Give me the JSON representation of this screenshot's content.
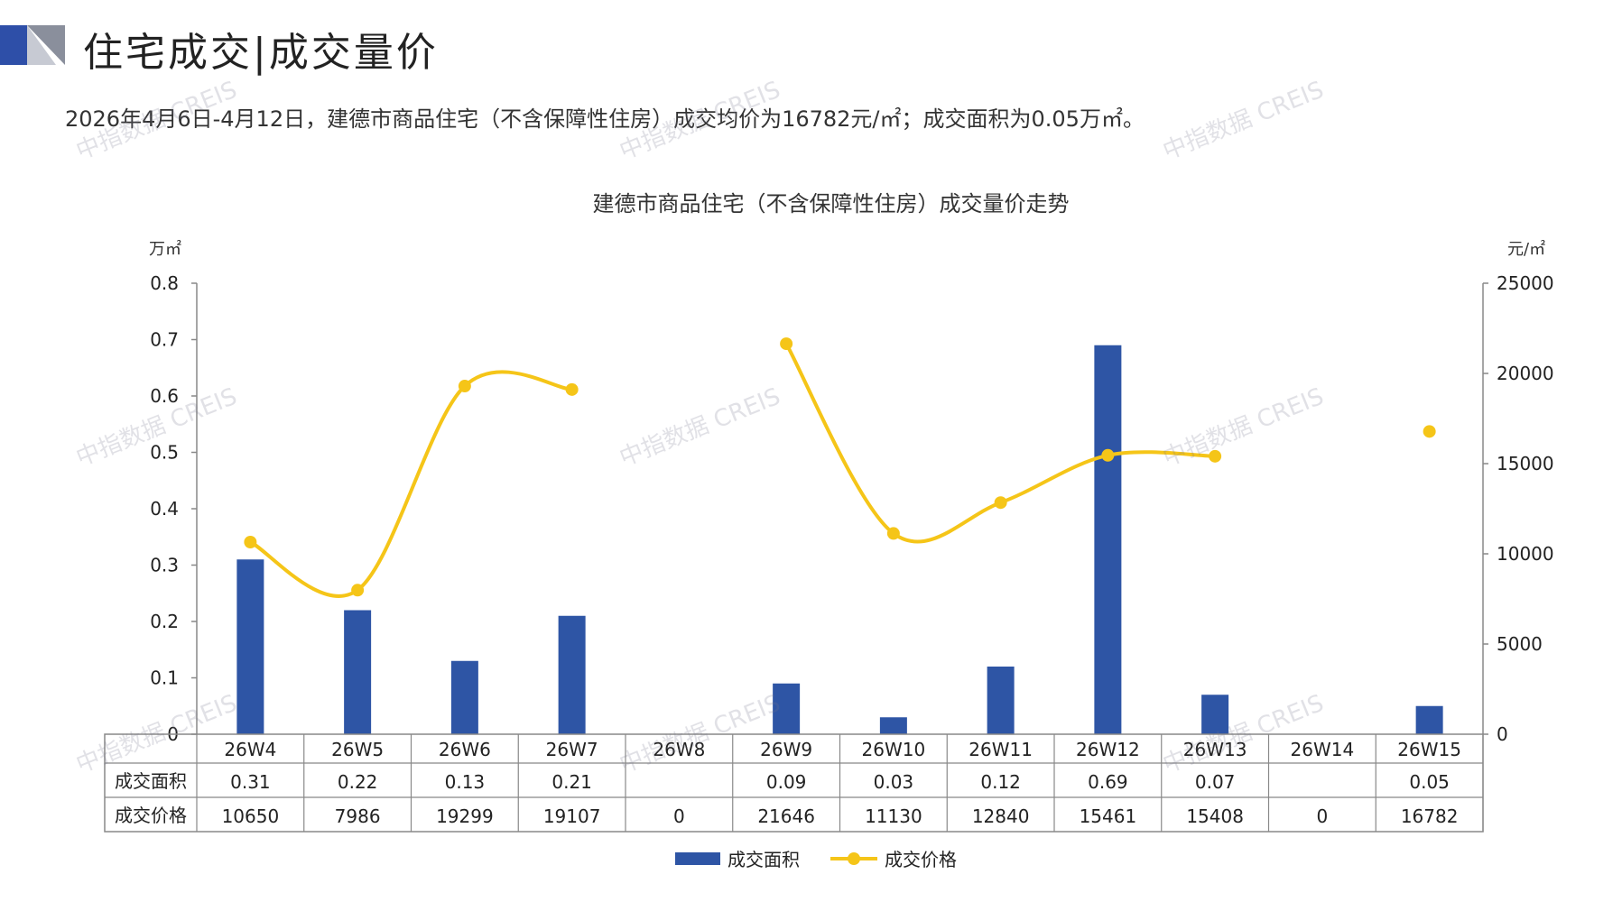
{
  "header": {
    "title": "住宅成交|成交量价",
    "summary": "2026年4月6日-4月12日，建德市商品住宅（不含保障性住房）成交均价为16782元/㎡；成交面积为0.05万㎡。"
  },
  "watermark": "中指数据 CREIS",
  "colors": {
    "bar": "#2E55A5",
    "line": "#F5C518",
    "accent_logo": "#2E4FA8"
  },
  "chart_data": {
    "type": "bar",
    "title": "建德市商品住宅（不含保障性住房）成交量价走势",
    "categories": [
      "26W4",
      "26W5",
      "26W6",
      "26W7",
      "26W8",
      "26W9",
      "26W10",
      "26W11",
      "26W12",
      "26W13",
      "26W14",
      "26W15"
    ],
    "y_left": {
      "unit": "万㎡",
      "ylim": [
        0,
        0.8
      ],
      "ticks": [
        "0",
        "0.1",
        "0.2",
        "0.3",
        "0.4",
        "0.5",
        "0.6",
        "0.7",
        "0.8"
      ]
    },
    "y_right": {
      "unit": "元/㎡",
      "ylim": [
        0,
        25000
      ],
      "ticks": [
        "0",
        "5000",
        "10000",
        "15000",
        "20000",
        "25000"
      ]
    },
    "series": [
      {
        "name": "成交面积",
        "type": "bar",
        "axis": "left",
        "values": [
          0.31,
          0.22,
          0.13,
          0.21,
          null,
          0.09,
          0.03,
          0.12,
          0.69,
          0.07,
          null,
          0.05
        ],
        "labels": [
          "0.31",
          "0.22",
          "0.13",
          "0.21",
          "",
          "0.09",
          "0.03",
          "0.12",
          "0.69",
          "0.07",
          "",
          "0.05"
        ]
      },
      {
        "name": "成交价格",
        "type": "line",
        "axis": "right",
        "values": [
          10650,
          7986,
          19299,
          19107,
          0,
          21646,
          11130,
          12840,
          15461,
          15408,
          0,
          16782
        ],
        "labels": [
          "10650",
          "7986",
          "19299",
          "19107",
          "0",
          "21646",
          "11130",
          "12840",
          "15461",
          "15408",
          "0",
          "16782"
        ]
      }
    ],
    "legend_position": "bottom-center"
  }
}
